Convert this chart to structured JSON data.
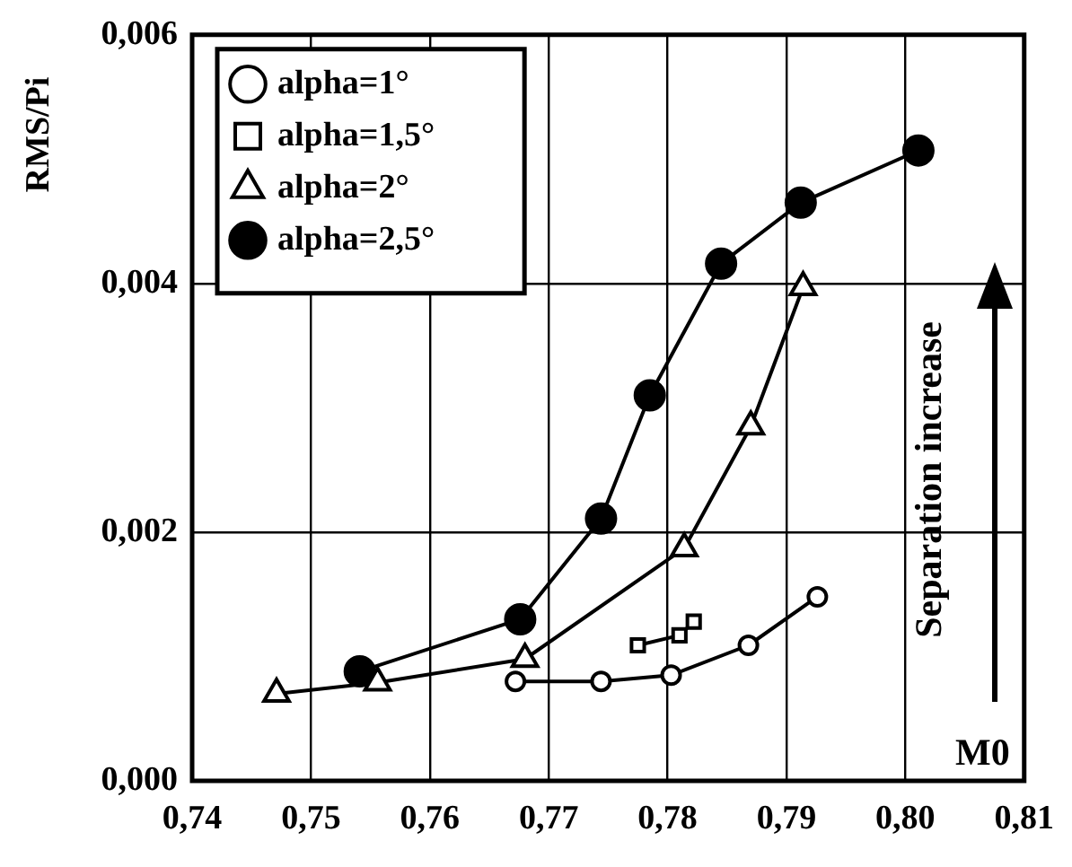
{
  "chart_data": {
    "type": "line",
    "xlabel": "M0",
    "ylabel": "RMS/Pi",
    "xlim": [
      0.74,
      0.81
    ],
    "ylim": [
      0,
      0.006
    ],
    "xticks": [
      {
        "value": 0.74,
        "label": "0,74"
      },
      {
        "value": 0.75,
        "label": "0,75"
      },
      {
        "value": 0.76,
        "label": "0,76"
      },
      {
        "value": 0.77,
        "label": "0,77"
      },
      {
        "value": 0.78,
        "label": "0,78"
      },
      {
        "value": 0.79,
        "label": "0,79"
      },
      {
        "value": 0.8,
        "label": "0,80"
      },
      {
        "value": 0.81,
        "label": "0,81"
      }
    ],
    "yticks": [
      {
        "value": 0,
        "label": "0,000"
      },
      {
        "value": 0.002,
        "label": "0,002"
      },
      {
        "value": 0.004,
        "label": "0,004"
      },
      {
        "value": 0.006,
        "label": "0,006"
      }
    ],
    "grid": true,
    "legend": "top left",
    "line_style": "solid",
    "annotations": [
      "Separation increase"
    ],
    "series": [
      {
        "name": "alpha=1°",
        "color": "#000000",
        "marker": "circle",
        "x": [
          0.7672,
          0.7744,
          0.7803,
          0.7868,
          0.7926
        ],
        "values": [
          0.0008,
          0.0008,
          0.00085,
          0.00109,
          0.00148
        ]
      },
      {
        "name": "alpha=1,5°",
        "color": "#000000",
        "marker": "square",
        "x": [
          0.7775,
          0.781,
          0.7822
        ],
        "values": [
          0.00109,
          0.00117,
          0.00128
        ]
      },
      {
        "name": "alpha=2°",
        "color": "#000000",
        "marker": "triangle",
        "x": [
          0.7471,
          0.7556,
          0.768,
          0.7814,
          0.787,
          0.7914
        ],
        "values": [
          0.0007,
          0.00079,
          0.00098,
          0.00187,
          0.00285,
          0.00397
        ]
      },
      {
        "name": "alpha=2,5°",
        "color": "#000000",
        "marker": "circle_filled",
        "x": [
          0.7541,
          0.7676,
          0.7744,
          0.7785,
          0.7845,
          0.7912,
          0.8011
        ],
        "values": [
          0.00088,
          0.0013,
          0.00211,
          0.0031,
          0.00416,
          0.00465,
          0.00507
        ]
      }
    ]
  }
}
